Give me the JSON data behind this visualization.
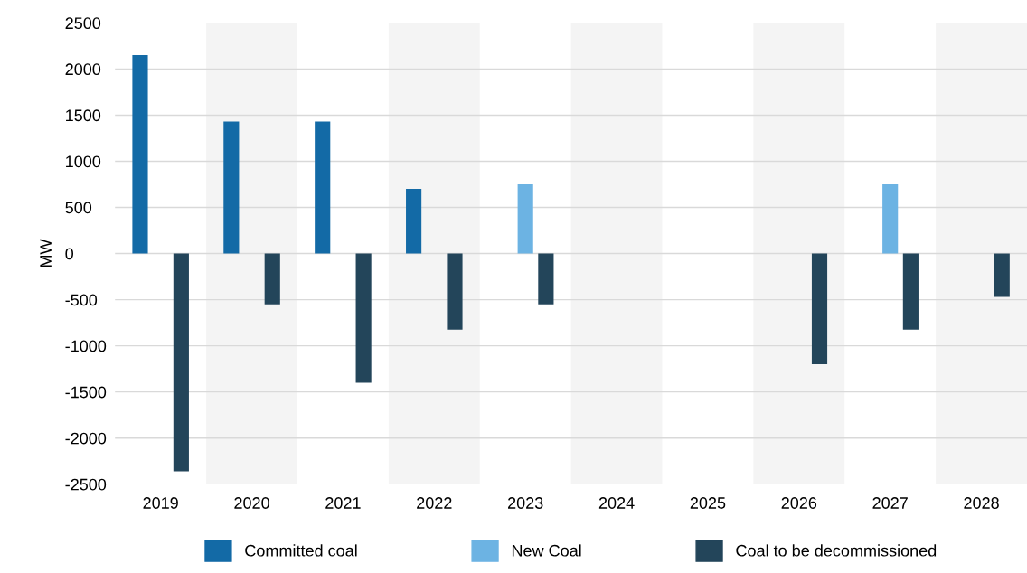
{
  "chart_data": {
    "type": "bar",
    "ylabel": "MW",
    "categories": [
      "2019",
      "2020",
      "2021",
      "2022",
      "2023",
      "2024",
      "2025",
      "2026",
      "2027",
      "2028"
    ],
    "series": [
      {
        "name": "Committed coal",
        "color": "#136aa6",
        "values": [
          2150,
          1430,
          1430,
          700,
          null,
          null,
          null,
          null,
          null,
          null
        ]
      },
      {
        "name": "New Coal",
        "color": "#6cb3e3",
        "values": [
          null,
          null,
          null,
          null,
          750,
          null,
          null,
          null,
          750,
          null
        ]
      },
      {
        "name": "Coal to be decommissioned",
        "color": "#23455a",
        "values": [
          -2360,
          -550,
          -1400,
          -825,
          -550,
          null,
          null,
          -1200,
          -825,
          -470
        ]
      }
    ],
    "ylim": [
      -2500,
      2500
    ],
    "yticks": [
      -2500,
      -2000,
      -1500,
      -1000,
      -500,
      0,
      500,
      1000,
      1500,
      2000,
      2500
    ],
    "bands": [
      {
        "axis": "x",
        "from": "2020",
        "to": "2020",
        "color": "#f4f4f4"
      },
      {
        "axis": "x",
        "from": "2022",
        "to": "2022",
        "color": "#f4f4f4"
      },
      {
        "axis": "x",
        "from": "2024",
        "to": "2024",
        "color": "#f4f4f4"
      },
      {
        "axis": "x",
        "from": "2026",
        "to": "2026",
        "color": "#f4f4f4"
      },
      {
        "axis": "x",
        "from": "2028",
        "to": "2028",
        "color": "#f4f4f4"
      }
    ],
    "grid": "y",
    "legend": "bottom"
  }
}
